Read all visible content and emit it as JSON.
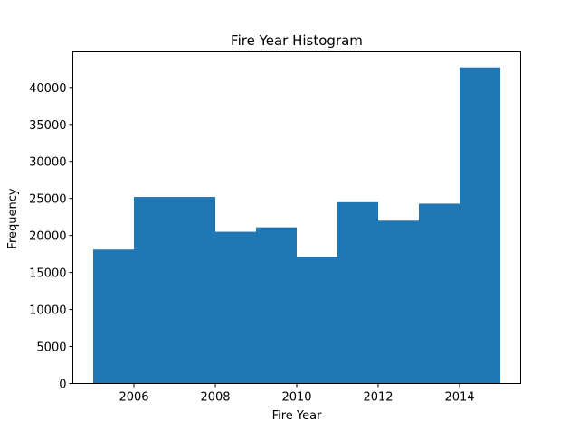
{
  "chart_data": {
    "type": "bar",
    "title": "Fire Year Histogram",
    "xlabel": "Fire Year",
    "ylabel": "Frequency",
    "bar_color": "#1f77b4",
    "bins": [
      {
        "start": 2005,
        "end": 2006,
        "value": 18100
      },
      {
        "start": 2006,
        "end": 2007,
        "value": 25200
      },
      {
        "start": 2007,
        "end": 2008,
        "value": 25200
      },
      {
        "start": 2008,
        "end": 2009,
        "value": 20500
      },
      {
        "start": 2009,
        "end": 2010,
        "value": 21100
      },
      {
        "start": 2010,
        "end": 2011,
        "value": 17100
      },
      {
        "start": 2011,
        "end": 2012,
        "value": 24500
      },
      {
        "start": 2012,
        "end": 2013,
        "value": 22000
      },
      {
        "start": 2013,
        "end": 2014,
        "value": 24300
      },
      {
        "start": 2014,
        "end": 2015,
        "value": 42700
      }
    ],
    "xlim": [
      2004.5,
      2015.5
    ],
    "ylim": [
      0,
      44800
    ],
    "x_ticks": [
      2006,
      2008,
      2010,
      2012,
      2014
    ],
    "x_tick_labels": [
      "2006",
      "2008",
      "2010",
      "2012",
      "2014"
    ],
    "y_ticks": [
      0,
      5000,
      10000,
      15000,
      20000,
      25000,
      30000,
      35000,
      40000
    ],
    "y_tick_labels": [
      "0",
      "5000",
      "10000",
      "15000",
      "20000",
      "25000",
      "30000",
      "35000",
      "40000"
    ],
    "grid": false
  }
}
